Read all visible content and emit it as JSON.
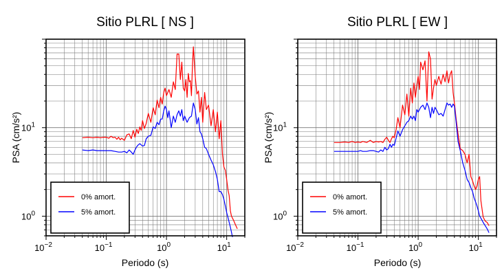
{
  "colors": {
    "series_0": "#ff0000",
    "series_5": "#0000ff",
    "grid": "#000000"
  },
  "chart_data": [
    {
      "type": "line",
      "title": "Sitio PLRL [ NS ]",
      "xlabel": "Periodo (s)",
      "ylabel": "PSA (cm/s²)",
      "xscale": "log",
      "yscale": "log",
      "xlim": [
        0.01,
        20
      ],
      "ylim": [
        0.6,
        100
      ],
      "grid": true,
      "legend_position": "bottom-left",
      "xticks": [
        {
          "value": 0.01,
          "base": "10",
          "exp": "−2"
        },
        {
          "value": 0.1,
          "base": "10",
          "exp": "−1"
        },
        {
          "value": 1,
          "base": "10",
          "exp": "0"
        },
        {
          "value": 10,
          "base": "10",
          "exp": "1"
        }
      ],
      "yticks": [
        {
          "value": 1,
          "base": "10",
          "exp": "0"
        },
        {
          "value": 10,
          "base": "10",
          "exp": "1"
        }
      ],
      "series": [
        {
          "name": "0% amort.",
          "color": "#ff0000",
          "x": [
            0.04,
            0.05,
            0.06,
            0.07,
            0.08,
            0.09,
            0.1,
            0.11,
            0.12,
            0.13,
            0.14,
            0.15,
            0.16,
            0.17,
            0.18,
            0.2,
            0.22,
            0.24,
            0.26,
            0.28,
            0.3,
            0.32,
            0.34,
            0.36,
            0.38,
            0.4,
            0.43,
            0.46,
            0.5,
            0.55,
            0.6,
            0.65,
            0.7,
            0.75,
            0.8,
            0.85,
            0.9,
            0.95,
            1.0,
            1.1,
            1.2,
            1.3,
            1.4,
            1.5,
            1.6,
            1.7,
            1.8,
            1.9,
            2.0,
            2.1,
            2.2,
            2.3,
            2.4,
            2.5,
            2.6,
            2.7,
            2.8,
            3.0,
            3.2,
            3.4,
            3.6,
            3.8,
            4.0,
            4.3,
            4.6,
            5.0,
            5.5,
            6.0,
            6.5,
            7.0,
            7.5,
            8.0,
            8.5,
            9.0,
            9.5,
            10,
            10.5,
            11,
            11.5,
            12,
            13,
            14,
            15
          ],
          "y": [
            7.7,
            7.8,
            7.7,
            7.8,
            7.7,
            7.8,
            7.8,
            7.6,
            8.0,
            7.7,
            7.8,
            7.4,
            7.8,
            7.3,
            7.6,
            7.2,
            8.3,
            8.5,
            7.5,
            9.3,
            7.8,
            9.6,
            8.6,
            10.2,
            9.3,
            12.0,
            9.8,
            11.2,
            14.5,
            11.5,
            16.8,
            14.0,
            20.5,
            16.8,
            22.0,
            18.5,
            25.0,
            28.0,
            23.0,
            27.0,
            22.0,
            33.0,
            27.0,
            68.0,
            68.0,
            35.0,
            55.0,
            28.0,
            26.0,
            35.0,
            22.0,
            41.0,
            33.0,
            34.0,
            23.0,
            52.0,
            82.0,
            38.0,
            24.0,
            26.0,
            15.0,
            22.0,
            11.5,
            25.0,
            16.0,
            18.0,
            10.5,
            16.0,
            9.0,
            15.0,
            7.5,
            12.0,
            5.0,
            3.6,
            3.3,
            2.6,
            2.0,
            1.7,
            1.15,
            1.0,
            0.9,
            0.8,
            0.72
          ]
        },
        {
          "name": "5% amort.",
          "color": "#0000ff",
          "x": [
            0.04,
            0.05,
            0.06,
            0.07,
            0.08,
            0.09,
            0.1,
            0.11,
            0.12,
            0.14,
            0.16,
            0.18,
            0.2,
            0.22,
            0.24,
            0.26,
            0.28,
            0.3,
            0.32,
            0.34,
            0.36,
            0.38,
            0.4,
            0.43,
            0.46,
            0.5,
            0.55,
            0.6,
            0.65,
            0.7,
            0.75,
            0.8,
            0.85,
            0.9,
            0.95,
            1.0,
            1.05,
            1.1,
            1.2,
            1.3,
            1.4,
            1.5,
            1.6,
            1.7,
            1.8,
            1.9,
            2.0,
            2.2,
            2.4,
            2.6,
            2.8,
            3.0,
            3.2,
            3.4,
            3.6,
            3.8,
            4.0,
            4.3,
            4.6,
            5.0,
            5.5,
            6.0,
            6.5,
            7.0,
            7.5,
            8.0,
            8.5,
            9.0,
            9.5,
            10,
            10.5,
            11,
            11.5,
            12,
            12.5
          ],
          "y": [
            5.6,
            5.5,
            5.6,
            5.5,
            5.5,
            5.5,
            5.5,
            5.5,
            5.5,
            5.4,
            5.3,
            5.3,
            5.4,
            5.2,
            5.6,
            5.3,
            5.0,
            5.6,
            6.1,
            6.4,
            6.6,
            6.4,
            6.2,
            6.3,
            7.5,
            8.0,
            8.2,
            10.2,
            9.8,
            11.5,
            10.8,
            12.5,
            12.5,
            15.5,
            17.5,
            16.0,
            13.0,
            15.5,
            10.0,
            13.5,
            11.5,
            14.0,
            15.5,
            13.5,
            16.0,
            12.0,
            13.5,
            11.5,
            13.0,
            13.5,
            19.0,
            16.0,
            11.0,
            13.0,
            9.0,
            8.5,
            7.5,
            6.0,
            5.8,
            5.0,
            4.3,
            3.8,
            3.2,
            2.6,
            1.9,
            1.9,
            1.75,
            1.55,
            1.3,
            1.1,
            0.97,
            0.85,
            0.75,
            0.66,
            0.58
          ]
        }
      ]
    },
    {
      "type": "line",
      "title": "Sitio PLRL [ EW ]",
      "xlabel": "Periodo (s)",
      "ylabel": "PSA (cm/s²)",
      "xscale": "log",
      "yscale": "log",
      "xlim": [
        0.01,
        20
      ],
      "ylim": [
        0.6,
        100
      ],
      "grid": true,
      "legend_position": "bottom-left",
      "xticks": [
        {
          "value": 0.01,
          "base": "10",
          "exp": "−2"
        },
        {
          "value": 0.1,
          "base": "10",
          "exp": "−1"
        },
        {
          "value": 1,
          "base": "10",
          "exp": "0"
        },
        {
          "value": 10,
          "base": "10",
          "exp": "1"
        }
      ],
      "yticks": [
        {
          "value": 1,
          "base": "10",
          "exp": "0"
        },
        {
          "value": 10,
          "base": "10",
          "exp": "1"
        }
      ],
      "series": [
        {
          "name": "0% amort.",
          "color": "#ff0000",
          "x": [
            0.04,
            0.05,
            0.06,
            0.07,
            0.08,
            0.09,
            0.1,
            0.11,
            0.12,
            0.14,
            0.16,
            0.18,
            0.2,
            0.22,
            0.24,
            0.26,
            0.28,
            0.3,
            0.32,
            0.34,
            0.36,
            0.38,
            0.4,
            0.43,
            0.46,
            0.5,
            0.55,
            0.6,
            0.65,
            0.7,
            0.75,
            0.8,
            0.85,
            0.9,
            0.95,
            1.0,
            1.05,
            1.1,
            1.2,
            1.3,
            1.4,
            1.5,
            1.6,
            1.7,
            1.8,
            1.9,
            2.0,
            2.2,
            2.4,
            2.6,
            2.8,
            3.0,
            3.2,
            3.4,
            3.6,
            3.8,
            4.0,
            4.3,
            4.6,
            5.0,
            5.5,
            6.0,
            6.5,
            7.0,
            7.5,
            8.0,
            8.5,
            9.0,
            9.5,
            10,
            10.5,
            11,
            12,
            13,
            14,
            15
          ],
          "y": [
            6.8,
            6.8,
            6.9,
            6.8,
            7.0,
            6.8,
            6.9,
            6.8,
            7.0,
            6.8,
            7.2,
            6.8,
            7.0,
            6.9,
            7.0,
            6.8,
            7.4,
            7.8,
            7.2,
            6.8,
            7.5,
            8.0,
            7.7,
            9.5,
            13.0,
            10.0,
            18.0,
            14.0,
            24.0,
            13.5,
            28.0,
            19.0,
            32.0,
            22.0,
            30.0,
            38.0,
            27.0,
            55.0,
            45.0,
            57.0,
            20.0,
            72.0,
            60.0,
            21.0,
            28.0,
            35.0,
            30.0,
            38.0,
            31.0,
            40.0,
            33.0,
            44.0,
            32.0,
            40.0,
            44.0,
            25.0,
            19.0,
            12.0,
            8.5,
            5.8,
            5.5,
            5.0,
            4.0,
            5.0,
            2.8,
            2.5,
            2.2,
            2.0,
            2.2,
            2.6,
            2.8,
            1.5,
            0.98,
            0.88,
            0.85,
            0.78
          ]
        },
        {
          "name": "5% amort.",
          "color": "#0000ff",
          "x": [
            0.04,
            0.05,
            0.06,
            0.07,
            0.08,
            0.09,
            0.1,
            0.11,
            0.12,
            0.14,
            0.16,
            0.18,
            0.2,
            0.22,
            0.24,
            0.26,
            0.28,
            0.3,
            0.32,
            0.34,
            0.36,
            0.38,
            0.4,
            0.43,
            0.46,
            0.5,
            0.55,
            0.6,
            0.65,
            0.7,
            0.75,
            0.8,
            0.85,
            0.9,
            0.95,
            1.0,
            1.1,
            1.2,
            1.3,
            1.4,
            1.5,
            1.6,
            1.7,
            1.8,
            1.9,
            2.0,
            2.2,
            2.4,
            2.6,
            2.8,
            3.0,
            3.2,
            3.4,
            3.6,
            3.8,
            4.0,
            4.3,
            4.6,
            5.0,
            5.5,
            6.0,
            6.5,
            7.0,
            7.5,
            8.0,
            8.5,
            9.0,
            9.5,
            10,
            10.5,
            11,
            12,
            13,
            14,
            15
          ],
          "y": [
            5.4,
            5.4,
            5.4,
            5.4,
            5.4,
            5.4,
            5.4,
            5.5,
            5.4,
            5.4,
            5.5,
            5.5,
            5.4,
            5.3,
            5.6,
            5.4,
            6.0,
            5.6,
            5.8,
            6.5,
            6.0,
            6.5,
            6.3,
            7.6,
            9.2,
            8.0,
            9.5,
            10.5,
            11.5,
            12.0,
            13.5,
            12.5,
            13.5,
            12.0,
            16.0,
            15.0,
            17.0,
            18.0,
            16.0,
            19.0,
            17.0,
            13.0,
            17.0,
            14.5,
            17.0,
            16.0,
            14.0,
            14.5,
            13.5,
            16.0,
            19.0,
            18.0,
            18.5,
            17.0,
            18.5,
            17.5,
            11.0,
            7.0,
            5.5,
            4.0,
            3.3,
            2.6,
            2.4,
            2.1,
            1.9,
            1.6,
            1.45,
            1.3,
            1.15,
            1.0,
            0.95,
            0.85,
            0.78,
            0.72,
            0.65
          ]
        }
      ]
    }
  ]
}
